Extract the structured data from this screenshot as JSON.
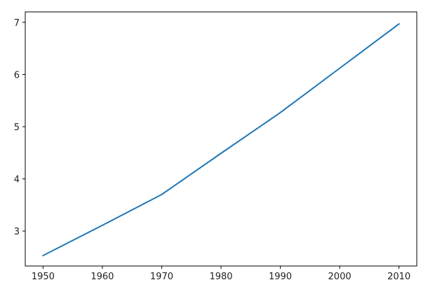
{
  "chart_data": {
    "type": "line",
    "title": "",
    "xlabel": "",
    "ylabel": "",
    "xlim": [
      1947,
      2013
    ],
    "ylim": [
      2.33,
      7.2
    ],
    "x_ticks": [
      1950,
      1960,
      1970,
      1980,
      1990,
      2000,
      2010
    ],
    "y_ticks": [
      3,
      4,
      5,
      6,
      7
    ],
    "grid": false,
    "legend": "none",
    "series": [
      {
        "color": "#1f77b4",
        "x": [
          1950,
          1960,
          1970,
          1980,
          1990,
          2000,
          2010
        ],
        "y": [
          2.53,
          3.11,
          3.7,
          4.49,
          5.27,
          6.12,
          6.97
        ]
      }
    ]
  }
}
